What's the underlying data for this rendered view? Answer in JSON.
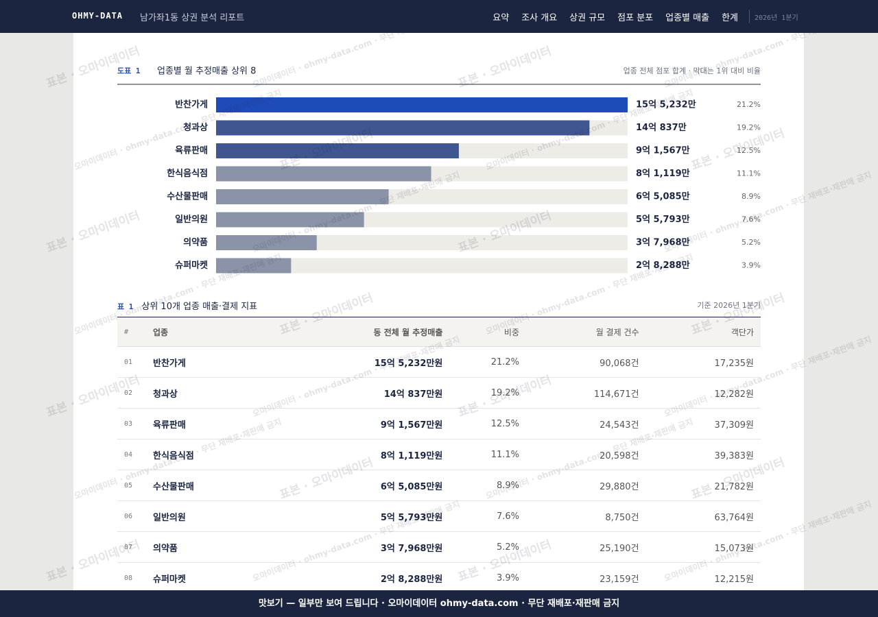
{
  "header": {
    "brand": "OHMY-DATA",
    "title": "남가좌1동 상권 분석 리포트",
    "nav": [
      "요약",
      "조사 개요",
      "상권 규모",
      "점포 분포",
      "업종별 매출",
      "한계"
    ],
    "period": "2026년 1분기"
  },
  "chart_data": {
    "type": "bar",
    "orientation": "horizontal",
    "label": "도표 1",
    "title": "업종별 월 추정매출 상위 8",
    "note": "업종 전체 점포 합계 · 막대는 1위 대비 비율",
    "categories": [
      "반찬가게",
      "청과상",
      "육류판매",
      "한식음식점",
      "수산물판매",
      "일반의원",
      "의약품",
      "슈퍼마켓"
    ],
    "values": [
      155232,
      140837,
      91567,
      81119,
      65085,
      55793,
      37968,
      28288
    ],
    "value_labels": [
      "15억 5,232만",
      "14억 837만",
      "9억 1,567만",
      "8억 1,119만",
      "6억 5,085만",
      "5억 5,793만",
      "3억 7,968만",
      "2억 8,288만"
    ],
    "shares": [
      "21.2%",
      "19.2%",
      "12.5%",
      "11.1%",
      "8.9%",
      "7.6%",
      "5.2%",
      "3.9%"
    ],
    "colors": [
      "#1f4bb8",
      "#3f5690",
      "#3f5690",
      "#8a93a8",
      "#8a93a8",
      "#8a93a8",
      "#8a93a8",
      "#8a93a8"
    ],
    "xlim": [
      0,
      155232
    ]
  },
  "table": {
    "label": "표 1",
    "title": "상위 10개 업종 매출·결제 지표",
    "note": "기준 2026년 1분기",
    "columns": [
      "#",
      "업종",
      "동 전체 월 추정매출",
      "비중",
      "월 결제 건수",
      "객단가"
    ],
    "rows": [
      [
        "01",
        "반찬가게",
        "15억 5,232만원",
        "21.2%",
        "90,068건",
        "17,235원"
      ],
      [
        "02",
        "청과상",
        "14억 837만원",
        "19.2%",
        "114,671건",
        "12,282원"
      ],
      [
        "03",
        "육류판매",
        "9억 1,567만원",
        "12.5%",
        "24,543건",
        "37,309원"
      ],
      [
        "04",
        "한식음식점",
        "8억 1,119만원",
        "11.1%",
        "20,598건",
        "39,383원"
      ],
      [
        "05",
        "수산물판매",
        "6억 5,085만원",
        "8.9%",
        "29,880건",
        "21,782원"
      ],
      [
        "06",
        "일반의원",
        "5억 5,793만원",
        "7.6%",
        "8,750건",
        "63,764원"
      ],
      [
        "07",
        "의약품",
        "3억 7,968만원",
        "5.2%",
        "25,190건",
        "15,073원"
      ],
      [
        "08",
        "슈퍼마켓",
        "2억 8,288만원",
        "3.9%",
        "23,159건",
        "12,215원"
      ]
    ]
  },
  "watermarks": [
    "표본 · 오마이데이터",
    "오마이데이터 · ohmy-data.com · 무단 재배포·재판매 금지"
  ],
  "footer": "맛보기 — 일부만 보여 드립니다 · 오마이데이터 ohmy-data.com · 무단 재배포·재판매 금지"
}
